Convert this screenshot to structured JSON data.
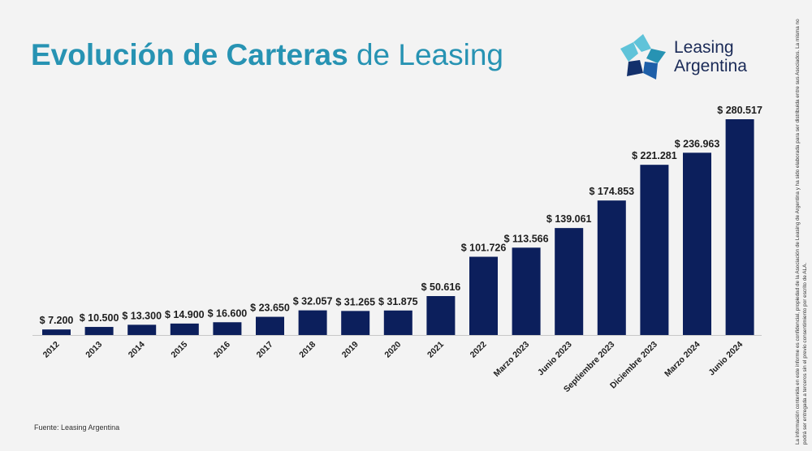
{
  "header": {
    "title_bold": "Evolución de Carteras",
    "title_regular": "de Leasing"
  },
  "logo": {
    "line1": "Leasing",
    "line2": "Argentina",
    "colors": [
      "#5fc3d9",
      "#2793b3",
      "#1e5fa8",
      "#13306b"
    ]
  },
  "footer": {
    "source": "Fuente: Leasing Argentina",
    "disclaimer_line1": "La información contenida en este informe es confidencial, propiedad de la Asociación de Leasing de Argentina y ha sido elaborada para ser distribuida entre sus Asociados. La misma no",
    "disclaimer_line2": "podrá ser entregada a terceros sin el previo consentimiento por escrito de ALA."
  },
  "colors": {
    "bar": "#0c1f5c",
    "title": "#2793b3",
    "background": "#f3f3f3"
  },
  "chart_data": {
    "type": "bar",
    "categories": [
      "2012",
      "2013",
      "2014",
      "2015",
      "2016",
      "2017",
      "2018",
      "2019",
      "2020",
      "2021",
      "2022",
      "Marzo 2023",
      "Junio 2023",
      "Septiembre 2023",
      "Diciembre 2023",
      "Marzo 2024",
      "Junio 2024"
    ],
    "values": [
      7200,
      10500,
      13300,
      14900,
      16600,
      23650,
      32057,
      31265,
      31875,
      50616,
      101726,
      113566,
      139061,
      174853,
      221281,
      236963,
      280517
    ],
    "labels": [
      "$ 7.200",
      "$ 10.500",
      "$ 13.300",
      "$ 14.900",
      "$ 16.600",
      "$ 23.650",
      "$ 32.057",
      "$ 31.265",
      "$ 31.875",
      "$ 50.616",
      "$ 101.726",
      "$ 113.566",
      "$ 139.061",
      "$ 174.853",
      "$ 221.281",
      "$ 236.963",
      "$ 280.517"
    ],
    "ylim": [
      0,
      280517
    ],
    "grid": false,
    "legend": "none"
  }
}
